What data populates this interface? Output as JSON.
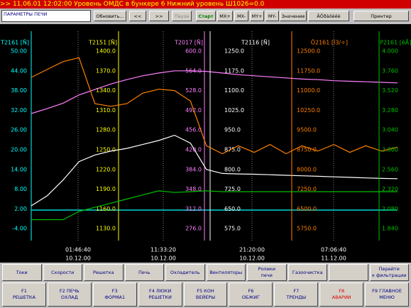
{
  "alarm_bar": ">> 11.06.01 12:02:00   Уровень ОМДС в бункере 6 Нижний уровень Ш1026=0.0",
  "toolbar": {
    "title": "ПАРАМЕТРЫ ПЕЧИ",
    "buttons": [
      "Обновить...",
      "<<",
      ">>",
      "Пауза",
      "Старт",
      "MX+",
      "MX-",
      "MY+",
      "MY-",
      "Значение",
      "ÃÕðàôèêè",
      "Принтер"
    ]
  },
  "trend": {
    "axes": [
      {
        "name": "T2161 [Ñ]",
        "color": "#00ffff",
        "ticks": [
          {
            "value": 50,
            "label": "50.00"
          },
          {
            "value": 44,
            "label": "44.00"
          },
          {
            "value": 38,
            "label": "38.00"
          },
          {
            "value": 32,
            "label": "32.00"
          },
          {
            "value": 26,
            "label": "26.00"
          },
          {
            "value": 20,
            "label": "20.00"
          },
          {
            "value": 14,
            "label": "14.00"
          },
          {
            "value": 8,
            "label": "8.00"
          },
          {
            "value": 2,
            "label": "2.00"
          },
          {
            "value": -4,
            "label": "-4.00"
          }
        ],
        "values": [
          1.65,
          1.65,
          1.65,
          1.65,
          1.65,
          1.65,
          1.65,
          1.65,
          1.65,
          1.65,
          1.65,
          1.65,
          1.65,
          1.65,
          1.65,
          1.65,
          1.65,
          1.65,
          1.65,
          1.65,
          1.65,
          1.65,
          1.65,
          1.65
        ]
      },
      {
        "name": "T2151 [Ñ]",
        "color": "#ffff00",
        "ticks": [
          {
            "value": 1400,
            "label": "1400.0"
          },
          {
            "value": 1370,
            "label": "1370.0"
          },
          {
            "value": 1340,
            "label": "1340.0"
          },
          {
            "value": 1310,
            "label": "1310.0"
          },
          {
            "value": 1280,
            "label": "1280.0"
          },
          {
            "value": 1250,
            "label": "1250.0"
          },
          {
            "value": 1220,
            "label": "1220.0"
          },
          {
            "value": 1190,
            "label": "1190.0"
          },
          {
            "value": 1160,
            "label": "1160.0"
          },
          {
            "value": 1130,
            "label": "1130.0"
          }
        ]
      },
      {
        "name": "T2017 [Ñ]",
        "color": "#ff80ff",
        "ticks": [
          {
            "value": 600,
            "label": "600.0"
          },
          {
            "value": 564,
            "label": "564.0"
          },
          {
            "value": 528,
            "label": "528.0"
          },
          {
            "value": 492,
            "label": "492.0"
          },
          {
            "value": 456,
            "label": "456.0"
          },
          {
            "value": 420,
            "label": "420.0"
          },
          {
            "value": 384,
            "label": "384.0"
          },
          {
            "value": 348,
            "label": "348.0"
          },
          {
            "value": 312,
            "label": "312.0"
          },
          {
            "value": 276,
            "label": "276.0"
          }
        ],
        "values": [
          486,
          495,
          505,
          520,
          530,
          540,
          548,
          555,
          560,
          564,
          564,
          563,
          560,
          557,
          555,
          553,
          551,
          549,
          548,
          546,
          545,
          544,
          543,
          542
        ]
      },
      {
        "name": "T2116 [Ñ]",
        "color": "#ffffff",
        "ticks": [
          {
            "value": 1250,
            "label": "1250.0"
          },
          {
            "value": 1175,
            "label": "1175.0"
          },
          {
            "value": 1100,
            "label": "1100.0"
          },
          {
            "value": 1025,
            "label": "1025.0"
          },
          {
            "value": 950,
            "label": "950.0"
          },
          {
            "value": 875,
            "label": "875.0"
          },
          {
            "value": 800,
            "label": "800.0"
          },
          {
            "value": 725,
            "label": "725.0"
          },
          {
            "value": 650,
            "label": "650.0"
          },
          {
            "value": 575,
            "label": "575.0"
          }
        ],
        "values": [
          662,
          700,
          760,
          830,
          855,
          870,
          880,
          895,
          910,
          930,
          900,
          800,
          785,
          783,
          782,
          780,
          778,
          776,
          774,
          772,
          770,
          768,
          766,
          765
        ]
      },
      {
        "name": "Ô2161 [Ì3/÷]",
        "color": "#ff8000",
        "ticks": [
          {
            "value": 12500,
            "label": "12500.0"
          },
          {
            "value": 11750,
            "label": "11750.0"
          },
          {
            "value": 11000,
            "label": "11000.0"
          },
          {
            "value": 10250,
            "label": "10250.0"
          },
          {
            "value": 9500,
            "label": "9500.0"
          },
          {
            "value": 8750,
            "label": "8750.0"
          },
          {
            "value": 8000,
            "label": "8000.0"
          },
          {
            "value": 7250,
            "label": "7250.0"
          },
          {
            "value": 6500,
            "label": "6500.0"
          },
          {
            "value": 5750,
            "label": "5750.0"
          }
        ],
        "values": [
          11500,
          11800,
          12100,
          12250,
          10500,
          10400,
          10500,
          10900,
          11050,
          11000,
          10600,
          8900,
          8600,
          8900,
          8650,
          8950,
          8600,
          8900,
          8700,
          8950,
          8650,
          8900,
          8700,
          8850
        ]
      },
      {
        "name": "P2161 [êÃ]",
        "color": "#00c000",
        "ticks": [
          {
            "value": 4,
            "label": "4.000"
          },
          {
            "value": 3.76,
            "label": "3.760"
          },
          {
            "value": 3.52,
            "label": "3.520"
          },
          {
            "value": 3.28,
            "label": "3.280"
          },
          {
            "value": 3.04,
            "label": "3.040"
          },
          {
            "value": 2.8,
            "label": "2.800"
          },
          {
            "value": 2.56,
            "label": "2.560"
          },
          {
            "value": 2.32,
            "label": "2.320"
          },
          {
            "value": 2.08,
            "label": "2.080"
          },
          {
            "value": 1.84,
            "label": "1.840"
          }
        ],
        "values": [
          1.95,
          1.95,
          1.95,
          2.05,
          2.1,
          2.15,
          2.2,
          2.25,
          2.3,
          2.28,
          2.29,
          2.3,
          2.29,
          2.29,
          2.29,
          2.29,
          2.29,
          2.29,
          2.29,
          2.29,
          2.29,
          2.29,
          2.29,
          2.29
        ]
      }
    ],
    "x_labels": [
      {
        "time": "01:46:40",
        "date": "10.12.00"
      },
      {
        "time": "11:33:20",
        "date": "10.12.00"
      },
      {
        "time": "21:20:00",
        "date": "10.12.00"
      },
      {
        "time": "07:06:40",
        "date": "11.12.00"
      }
    ]
  },
  "nav_buttons": [
    "Токи",
    "Скорости",
    "Решетка",
    "Печь",
    "Охладитель",
    "Вентиляторы",
    "Ролики\nпечи",
    "Газоочистка",
    "Перейти\nк фильтрации"
  ],
  "function_keys": [
    "F1\nРЕШЕТКА",
    "F2 ПЕЧЬ\nОХЛАД",
    "F3\nФОРМА1",
    "F4 ЛЮКИ\nРЕШЕТКИ",
    "F5 КОН\nВЕЙЕРЫ",
    "F6\nОБЖИГ",
    "F7\nТРЕНДЫ",
    "F8\nАВАРИИ",
    "F9 ГЛАВНОЕ\nМЕНЮ"
  ]
}
